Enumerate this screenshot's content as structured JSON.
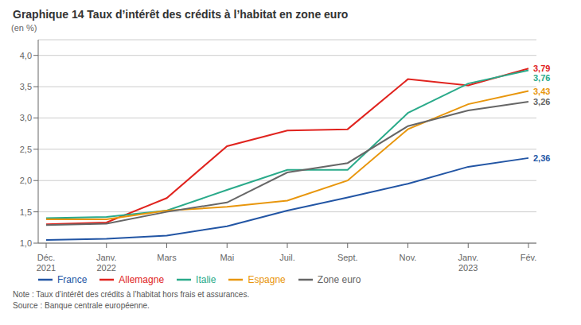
{
  "chart_data": {
    "type": "line",
    "title": "Graphique 14 Taux d’intérêt des crédits à l’habitat en zone euro",
    "ylabel": "(en %)",
    "categories": [
      "Déc.\n2021",
      "Janv.\n2022",
      "Mars",
      "Mai",
      "Juil.",
      "Sept.",
      "Nov.",
      "Janv.\n2023",
      "Fév."
    ],
    "series": [
      {
        "name": "France",
        "color": "#2255a4",
        "values": [
          1.05,
          1.07,
          1.12,
          1.27,
          1.52,
          1.73,
          1.95,
          2.22,
          2.36
        ],
        "value_labels": [
          null,
          null,
          null,
          null,
          null,
          null,
          null,
          null,
          "2,36"
        ]
      },
      {
        "name": "Allemagne",
        "color": "#e0231e",
        "values": [
          1.3,
          1.33,
          1.72,
          2.55,
          2.8,
          2.82,
          3.62,
          3.52,
          3.79
        ],
        "value_labels": [
          null,
          null,
          null,
          null,
          null,
          null,
          null,
          null,
          "3,79"
        ]
      },
      {
        "name": "Italie",
        "color": "#2aaa8a",
        "values": [
          1.4,
          1.42,
          1.52,
          1.85,
          2.17,
          2.17,
          3.08,
          3.55,
          3.76
        ],
        "value_labels": [
          null,
          null,
          null,
          null,
          null,
          null,
          null,
          null,
          "3,76"
        ]
      },
      {
        "name": "Espagne",
        "color": "#e8960c",
        "values": [
          1.38,
          1.38,
          1.52,
          1.58,
          1.68,
          2.0,
          2.82,
          3.22,
          3.43
        ],
        "value_labels": [
          null,
          null,
          null,
          null,
          null,
          null,
          null,
          null,
          "3,43"
        ]
      },
      {
        "name": "Zone euro",
        "color": "#666666",
        "values": [
          1.29,
          1.31,
          1.5,
          1.65,
          2.13,
          2.28,
          2.87,
          3.12,
          3.26
        ],
        "value_labels": [
          null,
          null,
          null,
          null,
          null,
          null,
          null,
          null,
          "3,26"
        ]
      }
    ],
    "ylim": [
      1.0,
      4.25
    ],
    "yticks": [
      {
        "value": 1.0,
        "label": "1,0"
      },
      {
        "value": 1.5,
        "label": "1,5"
      },
      {
        "value": 2.0,
        "label": "2,0"
      },
      {
        "value": 2.5,
        "label": "2,5"
      },
      {
        "value": 3.0,
        "label": "3,0"
      },
      {
        "value": 3.5,
        "label": "3,5"
      },
      {
        "value": 4.0,
        "label": "4,0"
      }
    ],
    "grid": "y",
    "legend": "bottom",
    "annotations": [
      "Note : Taux d’intérêt des crédits à l’habitat hors frais et assurances.",
      "Source : Banque centrale européenne."
    ]
  }
}
